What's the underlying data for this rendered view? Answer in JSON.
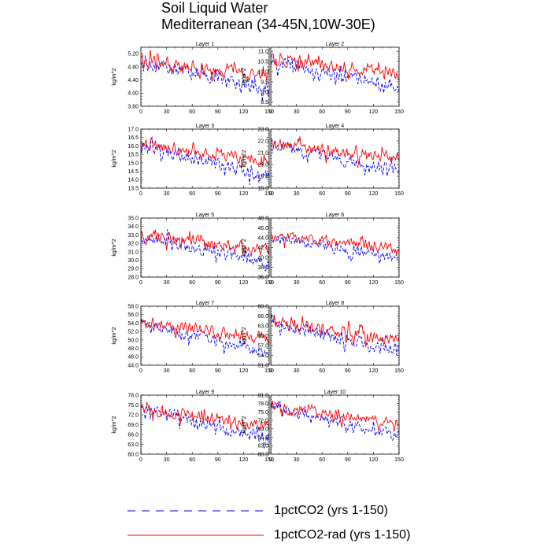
{
  "title_line1": "Soil Liquid Water",
  "title_line2": "Mediterranean (34-45N,10W-30E)",
  "colors": {
    "series_1pctCO2": "#0000ff",
    "series_1pctCO2_rad": "#ff0000",
    "axes": "#000000"
  },
  "legend": [
    {
      "label": "1pctCO2 (yrs 1-150)",
      "style": "dashed",
      "color": "#0000ff"
    },
    {
      "label": "1pctCO2-rad (yrs 1-150)",
      "style": "solid",
      "color": "#ff0000"
    }
  ],
  "chart_data": [
    {
      "type": "line",
      "panel_title": "Layer 1",
      "ylabel": "kg/m^2",
      "xlim": [
        0,
        150
      ],
      "ylim": [
        3.6,
        5.4
      ],
      "xticks": [
        0,
        30,
        60,
        90,
        120,
        150
      ],
      "yticks": [
        3.6,
        4.0,
        4.4,
        4.8,
        5.2
      ],
      "ytick_labels": [
        "3.60",
        "4.00",
        "4.40",
        "4.80",
        "5.20"
      ],
      "series": [
        {
          "name": "1pctCO2 (yrs 1-150)",
          "start": 4.95,
          "end": 4.1,
          "amp": 0.3,
          "seed": 11
        },
        {
          "name": "1pctCO2-rad (yrs 1-150)",
          "start": 5.0,
          "end": 4.5,
          "amp": 0.28,
          "seed": 21
        }
      ]
    },
    {
      "type": "line",
      "panel_title": "Layer 2",
      "ylabel": "kg/m^2",
      "xlim": [
        0,
        150
      ],
      "ylim": [
        8.3,
        11.2
      ],
      "xticks": [
        0,
        30,
        60,
        90,
        120,
        150
      ],
      "yticks": [
        8.5,
        9.0,
        9.5,
        10.0,
        10.5,
        11.0
      ],
      "ytick_labels": [
        "8.5",
        "9.0",
        "9.5",
        "10.0",
        "10.5",
        "11.0"
      ],
      "series": [
        {
          "name": "1pctCO2 (yrs 1-150)",
          "start": 10.5,
          "end": 9.2,
          "amp": 0.45,
          "seed": 12
        },
        {
          "name": "1pctCO2-rad (yrs 1-150)",
          "start": 10.6,
          "end": 9.9,
          "amp": 0.42,
          "seed": 22
        }
      ]
    },
    {
      "type": "line",
      "panel_title": "Layer 3",
      "ylabel": "kg/m^2",
      "xlim": [
        0,
        150
      ],
      "ylim": [
        13.5,
        17.0
      ],
      "xticks": [
        0,
        30,
        60,
        90,
        120,
        150
      ],
      "yticks": [
        13.5,
        14.0,
        14.5,
        15.0,
        15.5,
        16.0,
        16.5,
        17.0
      ],
      "ytick_labels": [
        "13.5",
        "14.0",
        "14.5",
        "15.0",
        "15.5",
        "16.0",
        "16.5",
        "17.0"
      ],
      "series": [
        {
          "name": "1pctCO2 (yrs 1-150)",
          "start": 16.0,
          "end": 14.2,
          "amp": 0.55,
          "seed": 13
        },
        {
          "name": "1pctCO2-rad (yrs 1-150)",
          "start": 16.1,
          "end": 15.1,
          "amp": 0.5,
          "seed": 23
        }
      ]
    },
    {
      "type": "line",
      "panel_title": "Layer 4",
      "ylabel": "kg/m^2",
      "xlim": [
        0,
        150
      ],
      "ylim": [
        18.0,
        23.0
      ],
      "xticks": [
        0,
        30,
        60,
        90,
        120,
        150
      ],
      "yticks": [
        18.0,
        19.0,
        20.0,
        21.0,
        22.0,
        23.0
      ],
      "ytick_labels": [
        "18.0",
        "19.0",
        "20.0",
        "21.0",
        "22.0",
        "23.0"
      ],
      "series": [
        {
          "name": "1pctCO2 (yrs 1-150)",
          "start": 21.7,
          "end": 19.4,
          "amp": 0.75,
          "seed": 14
        },
        {
          "name": "1pctCO2-rad (yrs 1-150)",
          "start": 21.8,
          "end": 20.5,
          "amp": 0.7,
          "seed": 24
        }
      ]
    },
    {
      "type": "line",
      "panel_title": "Layer 5",
      "ylabel": "kg/m^2",
      "xlim": [
        0,
        150
      ],
      "ylim": [
        28.0,
        35.0
      ],
      "xticks": [
        0,
        30,
        60,
        90,
        120,
        150
      ],
      "yticks": [
        28.0,
        29.0,
        30.0,
        31.0,
        32.0,
        33.0,
        34.0,
        35.0
      ],
      "ytick_labels": [
        "28.0",
        "29.0",
        "30.0",
        "31.0",
        "32.0",
        "33.0",
        "34.0",
        "35.0"
      ],
      "series": [
        {
          "name": "1pctCO2 (yrs 1-150)",
          "start": 32.9,
          "end": 29.6,
          "amp": 1.1,
          "seed": 15
        },
        {
          "name": "1pctCO2-rad (yrs 1-150)",
          "start": 33.0,
          "end": 31.2,
          "amp": 1.0,
          "seed": 25
        }
      ]
    },
    {
      "type": "line",
      "panel_title": "Layer 6",
      "ylabel": "kg/m^2",
      "xlim": [
        0,
        150
      ],
      "ylim": [
        36.0,
        48.0
      ],
      "xticks": [
        0,
        30,
        60,
        90,
        120,
        150
      ],
      "yticks": [
        36.0,
        38.0,
        40.0,
        42.0,
        44.0,
        46.0,
        48.0
      ],
      "ytick_labels": [
        "36.0",
        "38.0",
        "40.0",
        "42.0",
        "44.0",
        "46.0",
        "48.0"
      ],
      "series": [
        {
          "name": "1pctCO2 (yrs 1-150)",
          "start": 44.2,
          "end": 39.6,
          "amp": 1.6,
          "seed": 16
        },
        {
          "name": "1pctCO2-rad (yrs 1-150)",
          "start": 44.3,
          "end": 41.8,
          "amp": 1.5,
          "seed": 26
        }
      ]
    },
    {
      "type": "line",
      "panel_title": "Layer 7",
      "ylabel": "kg/m^2",
      "xlim": [
        0,
        150
      ],
      "ylim": [
        44.0,
        58.0
      ],
      "xticks": [
        0,
        30,
        60,
        90,
        120,
        150
      ],
      "yticks": [
        44.0,
        46.0,
        48.0,
        50.0,
        52.0,
        54.0,
        56.0,
        58.0
      ],
      "ytick_labels": [
        "44.0",
        "46.0",
        "48.0",
        "50.0",
        "52.0",
        "54.0",
        "56.0",
        "58.0"
      ],
      "series": [
        {
          "name": "1pctCO2 (yrs 1-150)",
          "start": 53.8,
          "end": 47.0,
          "amp": 2.1,
          "seed": 17
        },
        {
          "name": "1pctCO2-rad (yrs 1-150)",
          "start": 54.0,
          "end": 50.5,
          "amp": 2.0,
          "seed": 27
        }
      ]
    },
    {
      "type": "line",
      "panel_title": "Layer 8",
      "ylabel": "kg/m^2",
      "xlim": [
        0,
        150
      ],
      "ylim": [
        51.0,
        69.0
      ],
      "xticks": [
        0,
        30,
        60,
        90,
        120,
        150
      ],
      "yticks": [
        51.0,
        54.0,
        57.0,
        60.0,
        63.0,
        66.0,
        69.0
      ],
      "ytick_labels": [
        "51.0",
        "54.0",
        "57.0",
        "60.0",
        "63.0",
        "66.0",
        "69.0"
      ],
      "series": [
        {
          "name": "1pctCO2 (yrs 1-150)",
          "start": 63.5,
          "end": 55.5,
          "amp": 2.8,
          "seed": 18
        },
        {
          "name": "1pctCO2-rad (yrs 1-150)",
          "start": 63.8,
          "end": 59.0,
          "amp": 2.6,
          "seed": 28
        }
      ]
    },
    {
      "type": "line",
      "panel_title": "Layer 9",
      "ylabel": "kg/m^2",
      "xlim": [
        0,
        150
      ],
      "ylim": [
        60.0,
        78.0
      ],
      "xticks": [
        0,
        30,
        60,
        90,
        120,
        150
      ],
      "yticks": [
        60.0,
        63.0,
        66.0,
        69.0,
        72.0,
        75.0,
        78.0
      ],
      "ytick_labels": [
        "60.0",
        "63.0",
        "66.0",
        "69.0",
        "72.0",
        "75.0",
        "78.0"
      ],
      "series": [
        {
          "name": "1pctCO2 (yrs 1-150)",
          "start": 73.8,
          "end": 64.5,
          "amp": 2.8,
          "seed": 19
        },
        {
          "name": "1pctCO2-rad (yrs 1-150)",
          "start": 74.0,
          "end": 68.5,
          "amp": 2.6,
          "seed": 29
        }
      ]
    },
    {
      "type": "line",
      "panel_title": "Layer 10",
      "ylabel": "kg/m^2",
      "xlim": [
        0,
        150
      ],
      "ylim": [
        60.0,
        81.0
      ],
      "xticks": [
        0,
        30,
        60,
        90,
        120,
        150
      ],
      "yticks": [
        60.0,
        63.0,
        66.0,
        69.0,
        72.0,
        75.0,
        78.0,
        81.0
      ],
      "ytick_labels": [
        "60.0",
        "63.0",
        "66.0",
        "69.0",
        "72.0",
        "75.0",
        "78.0",
        "81.0"
      ],
      "series": [
        {
          "name": "1pctCO2 (yrs 1-150)",
          "start": 76.5,
          "end": 67.0,
          "amp": 2.8,
          "seed": 20
        },
        {
          "name": "1pctCO2-rad (yrs 1-150)",
          "start": 76.8,
          "end": 71.0,
          "amp": 2.6,
          "seed": 30
        }
      ]
    }
  ]
}
